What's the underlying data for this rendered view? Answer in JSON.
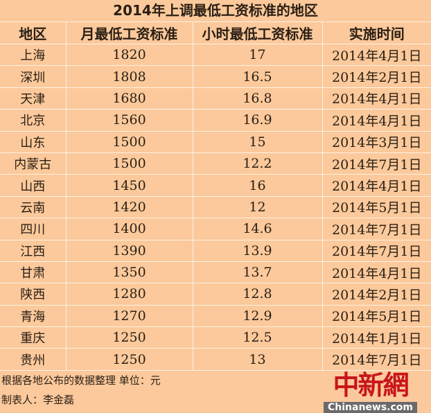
{
  "chart_data": {
    "type": "table",
    "title": "2014年上调最低工资标准的地区",
    "columns": [
      "地区",
      "月最低工资标准",
      "小时最低工资标准",
      "实施时间"
    ],
    "rows": [
      [
        "上海",
        "1820",
        "17",
        "2014年4月1日"
      ],
      [
        "深圳",
        "1808",
        "16.5",
        "2014年2月1日"
      ],
      [
        "天津",
        "1680",
        "16.8",
        "2014年4月1日"
      ],
      [
        "北京",
        "1560",
        "16.9",
        "2014年4月1日"
      ],
      [
        "山东",
        "1500",
        "15",
        "2014年3月1日"
      ],
      [
        "内蒙古",
        "1500",
        "12.2",
        "2014年7月1日"
      ],
      [
        "山西",
        "1450",
        "16",
        "2014年4月1日"
      ],
      [
        "云南",
        "1420",
        "12",
        "2014年5月1日"
      ],
      [
        "四川",
        "1400",
        "14.6",
        "2014年7月1日"
      ],
      [
        "江西",
        "1390",
        "13.9",
        "2014年7月1日"
      ],
      [
        "甘肃",
        "1350",
        "13.7",
        "2014年4月1日"
      ],
      [
        "陕西",
        "1280",
        "12.8",
        "2014年2月1日"
      ],
      [
        "青海",
        "1270",
        "12.9",
        "2014年5月1日"
      ],
      [
        "重庆",
        "1250",
        "12.5",
        "2014年1月1日"
      ],
      [
        "贵州",
        "1250",
        "13",
        "2014年7月1日"
      ]
    ],
    "background_color": "#fbc99b"
  },
  "footer": {
    "source": "根据各地公布的数据整理  单位：元",
    "author": "制表人：李金磊"
  },
  "watermark": {
    "cn": "中新網",
    "en": "Chinanews.com"
  }
}
